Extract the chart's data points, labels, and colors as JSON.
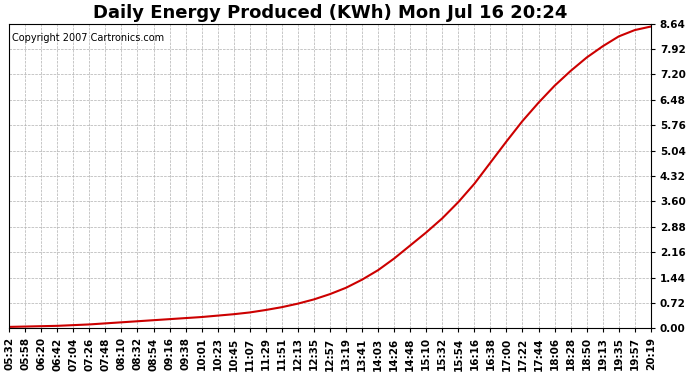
{
  "title": "Daily Energy Produced (KWh) Mon Jul 16 20:24",
  "copyright_text": "Copyright 2007 Cartronics.com",
  "line_color": "#cc0000",
  "background_color": "#ffffff",
  "plot_bg_color": "#ffffff",
  "grid_color": "#b0b0b0",
  "yticks": [
    0.0,
    0.72,
    1.44,
    2.16,
    2.88,
    3.6,
    4.32,
    5.04,
    5.76,
    6.48,
    7.2,
    7.92,
    8.64
  ],
  "ymin": 0.0,
  "ymax": 8.64,
  "xtick_labels": [
    "05:32",
    "05:58",
    "06:20",
    "06:42",
    "07:04",
    "07:26",
    "07:48",
    "08:10",
    "08:32",
    "08:54",
    "09:16",
    "09:38",
    "10:01",
    "10:23",
    "10:45",
    "11:07",
    "11:29",
    "11:51",
    "12:13",
    "12:35",
    "12:57",
    "13:19",
    "13:41",
    "14:03",
    "14:26",
    "14:48",
    "15:10",
    "15:32",
    "15:54",
    "16:16",
    "16:38",
    "17:00",
    "17:22",
    "17:44",
    "18:06",
    "18:28",
    "18:50",
    "19:13",
    "19:35",
    "19:57",
    "20:19"
  ],
  "x_values": [
    0,
    1,
    2,
    3,
    4,
    5,
    6,
    7,
    8,
    9,
    10,
    11,
    12,
    13,
    14,
    15,
    16,
    17,
    18,
    19,
    20,
    21,
    22,
    23,
    24,
    25,
    26,
    27,
    28,
    29,
    30,
    31,
    32,
    33,
    34,
    35,
    36,
    37,
    38,
    39,
    40
  ],
  "y_values": [
    0.04,
    0.05,
    0.06,
    0.07,
    0.09,
    0.11,
    0.14,
    0.17,
    0.2,
    0.23,
    0.26,
    0.29,
    0.32,
    0.36,
    0.4,
    0.45,
    0.52,
    0.6,
    0.7,
    0.82,
    0.97,
    1.15,
    1.38,
    1.65,
    1.98,
    2.35,
    2.72,
    3.12,
    3.58,
    4.1,
    4.7,
    5.3,
    5.88,
    6.4,
    6.88,
    7.3,
    7.68,
    8.0,
    8.28,
    8.46,
    8.56
  ],
  "title_fontsize": 13,
  "tick_fontsize": 7.5,
  "copyright_fontsize": 7,
  "line_width": 1.5
}
